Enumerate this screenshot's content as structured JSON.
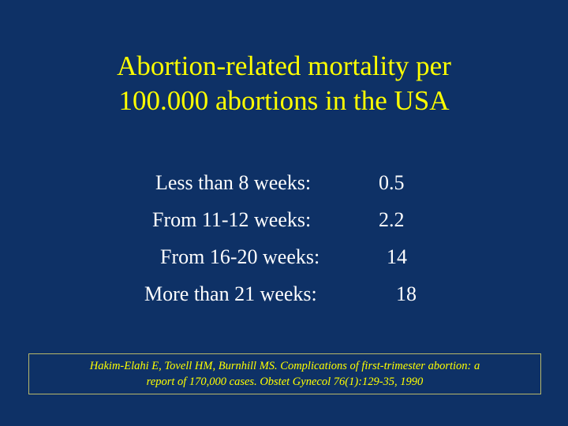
{
  "title": {
    "line1": "Abortion-related mortality per",
    "line2": "100.000 abortions in the USA"
  },
  "stats": [
    {
      "label": "Less than 8 weeks:",
      "value": "0.5"
    },
    {
      "label": "From 11-12 weeks:",
      "value": "2.2"
    },
    {
      "label": "From 16-20 weeks:",
      "value": "14"
    },
    {
      "label": "More than 21 weeks:",
      "value": "18"
    }
  ],
  "citation": {
    "line1": "Hakim-Elahi E, Tovell HM, Burnhill MS. Complications of first-trimester abortion: a",
    "line2": "report of 170,000 cases. Obstet Gynecol 76(1):129-35, 1990"
  },
  "colors": {
    "background": "#0e3166",
    "title": "#ffff00",
    "body_text": "#ffffff",
    "citation_text": "#ffff00"
  }
}
